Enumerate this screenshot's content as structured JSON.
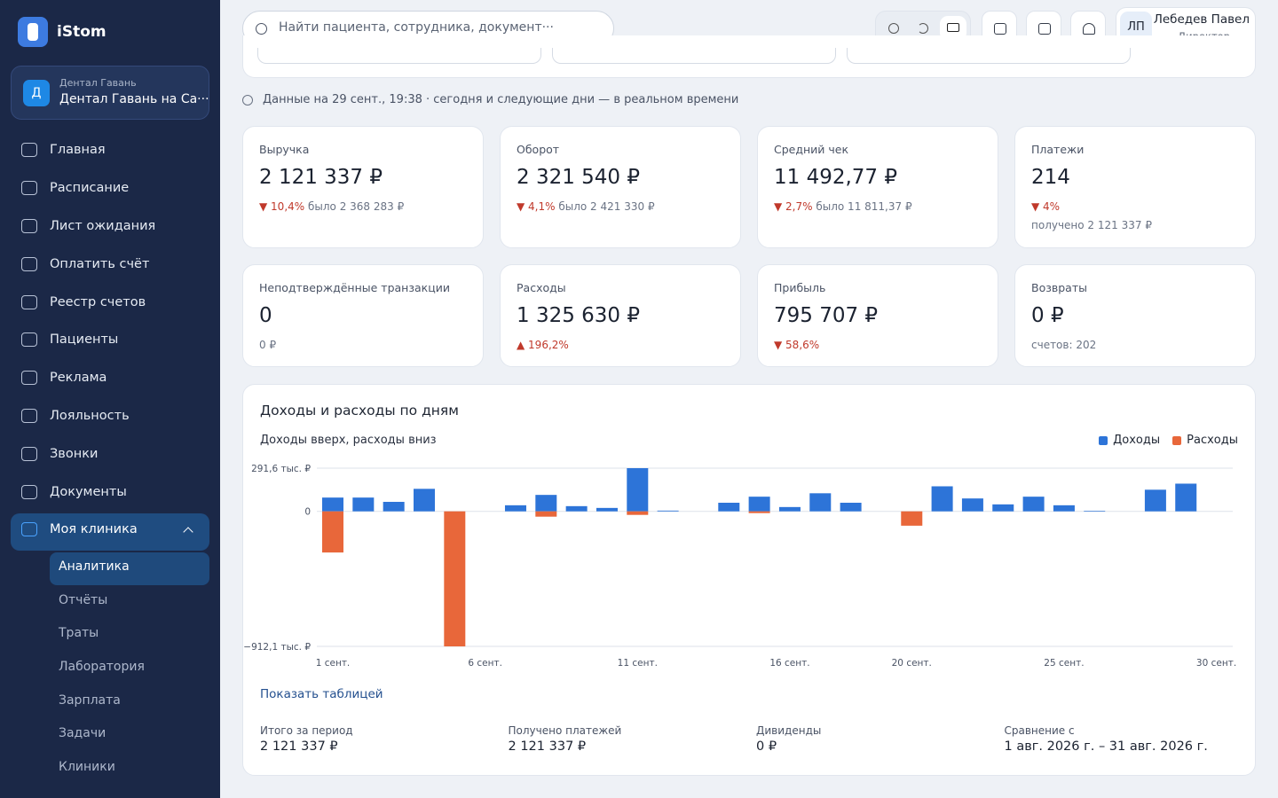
{
  "sidebar": {
    "brand": "iStom",
    "org": {
      "badge": "Д",
      "caption": "Дентал Гавань",
      "name": "Дентал Гавань на Са···"
    },
    "nav": [
      "Главная",
      "Расписание",
      "Лист ожидания",
      "Оплатить счёт",
      "Реестр счетов",
      "Пациенты",
      "Реклама",
      "Лояльность",
      "Звонки",
      "Документы",
      "Моя клиника"
    ],
    "submenu": [
      "Аналитика",
      "Отчёты",
      "Траты",
      "Лаборатория",
      "Зарплата",
      "Задачи",
      "Клиники"
    ]
  },
  "header": {
    "search_placeholder": "Найти пациента, сотрудника, документ···",
    "user": {
      "initials": "ЛП",
      "name": "Лебедев Павел",
      "role": "Директор"
    }
  },
  "status": "Данные на 29 сент., 19:38 · сегодня и следующие дни — в реальном времени",
  "kpis": [
    {
      "label": "Выручка",
      "value": "2 121 337 ₽",
      "delta": "▼ 10,4%",
      "note": "было 2 368 283 ₽"
    },
    {
      "label": "Оборот",
      "value": "2 321 540 ₽",
      "delta": "▼ 4,1%",
      "note": "было 2 421 330 ₽"
    },
    {
      "label": "Средний чек",
      "value": "11 492,77 ₽",
      "delta": "▼ 2,7%",
      "note": "было 11 811,37 ₽"
    },
    {
      "label": "Платежи",
      "value": "214",
      "delta": "▼ 4%",
      "note2": "получено 2 121 337 ₽"
    },
    {
      "label": "Неподтверждённые транзакции",
      "value": "0",
      "note2": "0 ₽"
    },
    {
      "label": "Расходы",
      "value": "1 325 630 ₽",
      "delta": "▲ 196,2%"
    },
    {
      "label": "Прибыль",
      "value": "795 707 ₽",
      "delta": "▼ 58,6%"
    },
    {
      "label": "Возвраты",
      "value": "0 ₽",
      "note2": "счетов: 202"
    }
  ],
  "chart_data": {
    "type": "bar",
    "title": "Доходы и расходы по дням",
    "subtitle": "Доходы вверх, расходы вниз",
    "legend": "top-right",
    "grid": true,
    "categories": [
      "1 сент.",
      null,
      null,
      null,
      null,
      "6 сент.",
      null,
      null,
      null,
      null,
      "11 сент.",
      null,
      null,
      null,
      null,
      "16 сент.",
      null,
      null,
      null,
      "20 сент.",
      null,
      null,
      null,
      null,
      "25 сент.",
      null,
      null,
      null,
      null,
      "30 сент."
    ],
    "series": [
      {
        "name": "Доходы",
        "color": "#2d74d8",
        "values": [
          93,
          93,
          64,
          152,
          0,
          0,
          41,
          111,
          35,
          23,
          291.6,
          5,
          0,
          58,
          99,
          29,
          122,
          58,
          0,
          0,
          169,
          87,
          47,
          99,
          41,
          4,
          0,
          146,
          187,
          0
        ]
      },
      {
        "name": "Расходы",
        "color": "#e8673a",
        "values": [
          -278,
          0,
          0,
          0,
          -912.1,
          0,
          0,
          -36,
          0,
          0,
          -24,
          0,
          0,
          0,
          -12,
          0,
          0,
          0,
          0,
          -97,
          0,
          0,
          0,
          0,
          0,
          0,
          0,
          0,
          0,
          0
        ]
      }
    ],
    "ylim": [
      -912.1,
      291.6
    ],
    "yticks": [
      {
        "value": 291.6,
        "label": "291,6 тыс. ₽"
      },
      0,
      {
        "value": -912.1,
        "label": "−912,1 тыс. ₽"
      }
    ]
  },
  "footer": {
    "toggle": "Показать таблицей",
    "summary": [
      {
        "label": "Итого за период",
        "value": "2 121 337 ₽"
      },
      {
        "label": "Получено платежей",
        "value": "2 121 337 ₽"
      },
      {
        "label": "Дивиденды",
        "value": "0 ₽"
      },
      {
        "label": "Сравнение с",
        "value": "1 авг. 2026 г. – 31 авг. 2026 г."
      }
    ]
  }
}
